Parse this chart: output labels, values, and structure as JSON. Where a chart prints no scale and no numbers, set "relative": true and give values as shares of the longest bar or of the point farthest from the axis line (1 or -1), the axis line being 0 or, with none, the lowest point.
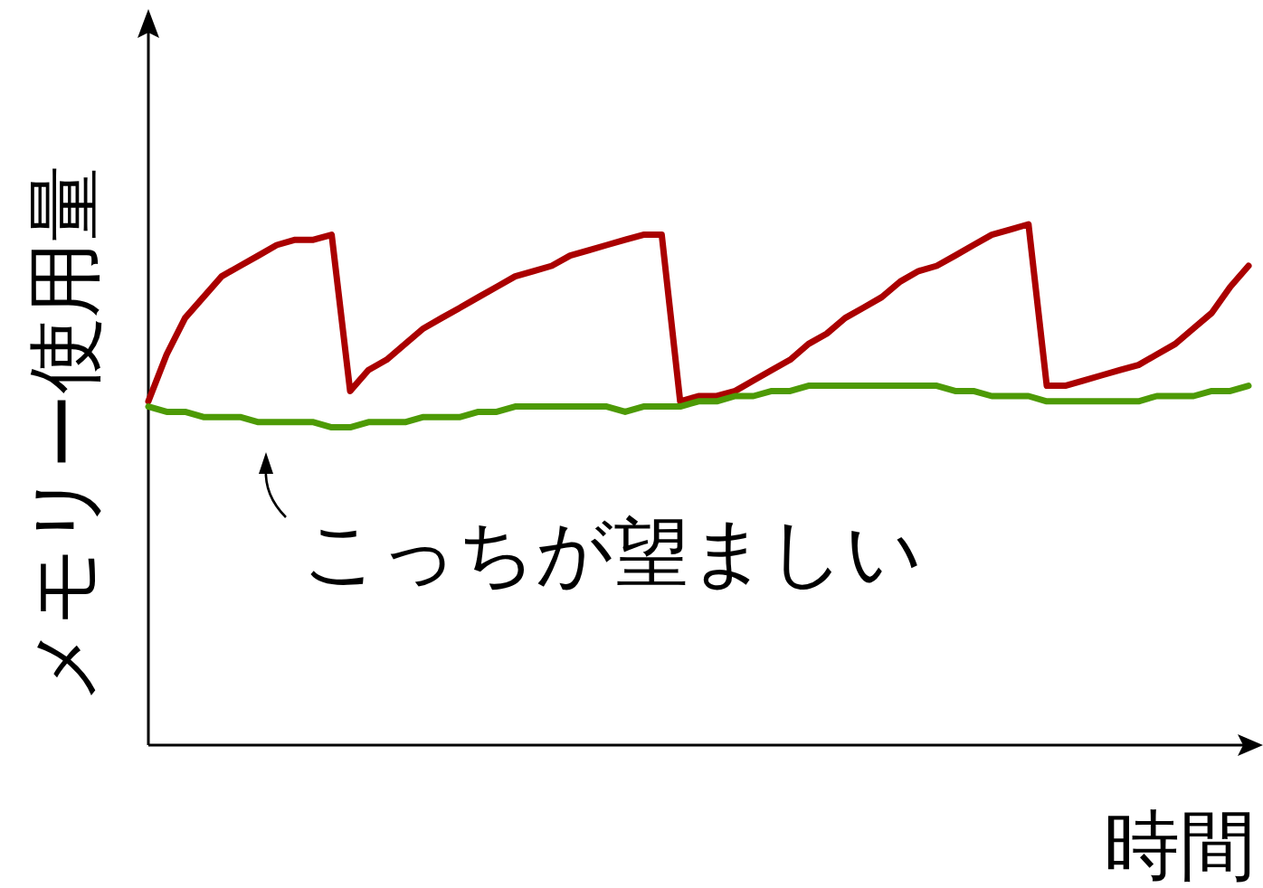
{
  "chart_data": {
    "type": "line",
    "relative": true,
    "xlabel": "時間",
    "ylabel": "メモリー使用量",
    "categories": [
      null,
      null,
      null,
      null,
      null,
      null,
      null,
      null,
      null,
      null,
      null,
      null,
      null,
      null,
      null,
      null,
      null,
      null,
      null,
      null,
      null,
      null,
      null,
      null,
      null,
      null,
      null,
      null,
      null,
      null,
      null,
      null,
      null,
      null,
      null,
      null,
      null,
      null,
      null,
      null,
      null,
      null,
      null,
      null,
      null,
      null,
      null,
      null,
      null,
      null,
      null,
      null,
      null,
      null,
      null,
      null,
      null,
      null,
      null,
      null,
      null
    ],
    "series": [
      {
        "color": "#aa0000",
        "values": [
          0.66,
          0.75,
          0.82,
          0.86,
          0.9,
          0.92,
          0.94,
          0.96,
          0.97,
          0.97,
          0.98,
          0.68,
          0.72,
          0.74,
          0.77,
          0.8,
          0.82,
          0.84,
          0.86,
          0.88,
          0.9,
          0.91,
          0.92,
          0.94,
          0.95,
          0.96,
          0.97,
          0.98,
          0.98,
          0.66,
          0.67,
          0.67,
          0.68,
          0.7,
          0.72,
          0.74,
          0.77,
          0.79,
          0.82,
          0.84,
          0.86,
          0.89,
          0.91,
          0.92,
          0.94,
          0.96,
          0.98,
          0.99,
          1.0,
          0.69,
          0.69,
          0.7,
          0.71,
          0.72,
          0.73,
          0.75,
          0.77,
          0.8,
          0.83,
          0.88,
          0.92
        ]
      },
      {
        "color": "#4d9a06",
        "values": [
          0.65,
          0.64,
          0.64,
          0.63,
          0.63,
          0.63,
          0.62,
          0.62,
          0.62,
          0.62,
          0.61,
          0.61,
          0.62,
          0.62,
          0.62,
          0.63,
          0.63,
          0.63,
          0.64,
          0.64,
          0.65,
          0.65,
          0.65,
          0.65,
          0.65,
          0.65,
          0.64,
          0.65,
          0.65,
          0.65,
          0.66,
          0.66,
          0.67,
          0.67,
          0.68,
          0.68,
          0.69,
          0.69,
          0.69,
          0.69,
          0.69,
          0.69,
          0.69,
          0.69,
          0.68,
          0.68,
          0.67,
          0.67,
          0.67,
          0.66,
          0.66,
          0.66,
          0.66,
          0.66,
          0.66,
          0.67,
          0.67,
          0.67,
          0.68,
          0.68,
          0.69
        ]
      }
    ],
    "annotations": [
      "こっちが望ましい"
    ]
  }
}
